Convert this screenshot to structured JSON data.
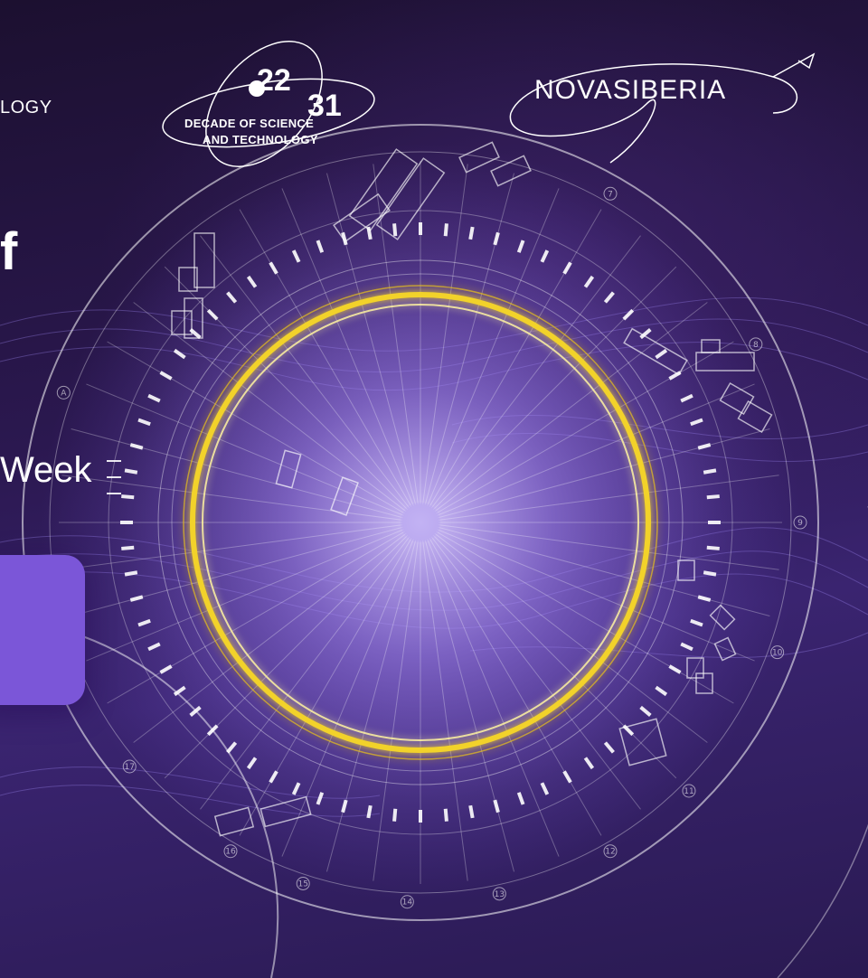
{
  "left_panel": {
    "dst_tail": "LOGY",
    "headline_tail": "f",
    "week_tail": "Week"
  },
  "decade_logo": {
    "num_top": "22",
    "num_bottom": "31",
    "line1": "DECADE OF SCIENCE",
    "line2": "AND TECHNOLOGY"
  },
  "brand_logo": {
    "text": "NOVASIBERIA"
  },
  "dial_markers": [
    "A",
    "7",
    "8",
    "9",
    "10",
    "11",
    "12",
    "13",
    "14",
    "15",
    "16",
    "17"
  ],
  "colors": {
    "background": "#2b1850",
    "accent_purple": "#7b56d8",
    "gold_ring": "#f2d22a",
    "line": "#ffffff"
  }
}
